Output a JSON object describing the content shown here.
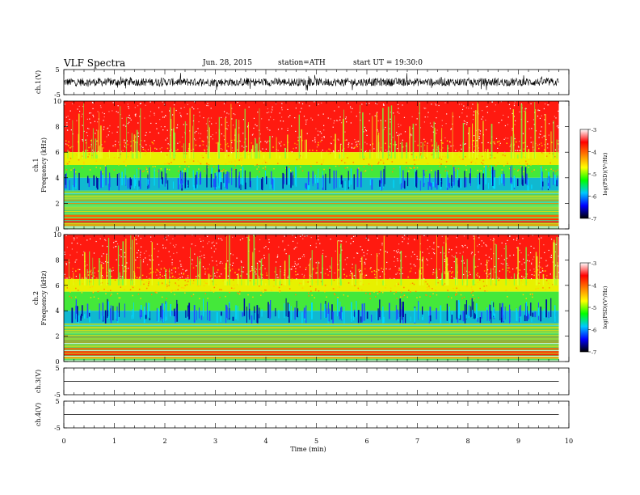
{
  "header": {
    "title": "VLF  Spectra",
    "date": "Jun. 28, 2015",
    "station": "station=ATH",
    "start": "start  UT =   19:30:0"
  },
  "chart_data": [
    {
      "type": "line",
      "name": "ch1-waveform",
      "ylabel": "ch.1(V)",
      "ylim": [
        -5,
        5
      ],
      "yticks": [
        "5",
        "-5"
      ],
      "xlim": [
        0,
        10
      ],
      "signal": "noise burst waveform, amplitude about ±2.5 V"
    },
    {
      "type": "heatmap",
      "name": "ch1-spectrogram",
      "ylabel_line1": "ch.1",
      "ylabel_line2": "Frequency  (kHz)",
      "ylim": [
        0,
        10
      ],
      "yticks": [
        "0",
        "2",
        "4",
        "6",
        "8",
        "10"
      ],
      "xlim": [
        0,
        9.8
      ],
      "colorbar": {
        "label": "log(PSD)(V²/Hz)",
        "range": [
          -7,
          -3
        ],
        "ticks": [
          "-3",
          "-4",
          "-5",
          "-6",
          "-7"
        ],
        "colors": [
          "#ffffff",
          "#ff0000",
          "#ff8000",
          "#ffff00",
          "#00ff00",
          "#00c8ff",
          "#0000ff",
          "#000000"
        ]
      },
      "bands_kHz": {
        "red_above": 6,
        "yellow": [
          5,
          6
        ],
        "green": [
          4,
          5
        ],
        "blue_cyan": [
          3,
          4
        ],
        "striped_green_below": 3
      }
    },
    {
      "type": "heatmap",
      "name": "ch2-spectrogram",
      "ylabel_line1": "ch.2",
      "ylabel_line2": "Frequency  (kHz)",
      "ylim": [
        0,
        10
      ],
      "yticks": [
        "0",
        "2",
        "4",
        "6",
        "8",
        "10"
      ],
      "xlim": [
        0,
        9.8
      ],
      "colorbar": {
        "label": "log(PSD)(V²/Hz)",
        "range": [
          -7,
          -3
        ],
        "ticks": [
          "-3",
          "-4",
          "-5",
          "-6",
          "-7"
        ],
        "colors": [
          "#ffffff",
          "#ff0000",
          "#ff8000",
          "#ffff00",
          "#00ff00",
          "#00c8ff",
          "#0000ff",
          "#000000"
        ]
      },
      "bands_kHz": {
        "red_above": 6.5,
        "yellow": [
          5.5,
          6.5
        ],
        "green": [
          4,
          5.5
        ],
        "blue_cyan": [
          3,
          4
        ],
        "striped_green_below": 3
      }
    },
    {
      "type": "line",
      "name": "ch3-waveform",
      "ylabel": "ch.3(V)",
      "ylim": [
        -5,
        5
      ],
      "yticks": [
        "5",
        "-5"
      ],
      "xlim": [
        0,
        9.8
      ],
      "signal": "flat near 0 V"
    },
    {
      "type": "line",
      "name": "ch4-waveform",
      "ylabel": "ch.4(V)",
      "ylim": [
        -5,
        5
      ],
      "yticks": [
        "5",
        "-5"
      ],
      "xlim": [
        0,
        9.8
      ],
      "signal": "flat near 0 V"
    }
  ],
  "xaxis": {
    "label": "Time  (min)",
    "range": [
      0,
      10
    ],
    "ticks": [
      "0",
      "1",
      "2",
      "3",
      "4",
      "5",
      "6",
      "7",
      "8",
      "9",
      "10"
    ]
  }
}
